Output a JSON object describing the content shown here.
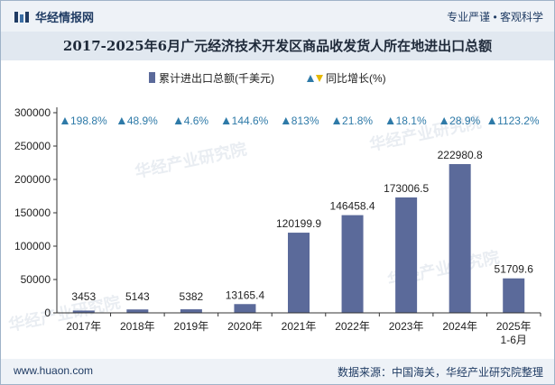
{
  "header": {
    "brand_name": "华经情报网",
    "slogan": "专业严谨 • 客观科学"
  },
  "footer": {
    "website": "www.huaon.com",
    "source": "数据来源：中国海关，华经产业研究院整理"
  },
  "watermark": "华经产业研究院",
  "colors": {
    "bar": "#5b6a9a",
    "growth_marker": "#2e7aa8",
    "title_band": "#e1e8f0",
    "header_band": "#eef2f7",
    "brand_text": "#1f3b63",
    "legend_growth_up": "#2e7aa8",
    "legend_growth_down": "#e6b800"
  },
  "chart_data": {
    "type": "bar",
    "title": "2017-2025年6月广元经济技术开发区商品收发货人所在地进出口总额",
    "categories": [
      "2017年",
      "2018年",
      "2019年",
      "2020年",
      "2021年",
      "2022年",
      "2023年",
      "2024年",
      "2025年\n1-6月"
    ],
    "category_lines": [
      [
        "2017年"
      ],
      [
        "2018年"
      ],
      [
        "2019年"
      ],
      [
        "2020年"
      ],
      [
        "2021年"
      ],
      [
        "2022年"
      ],
      [
        "2023年"
      ],
      [
        "2024年"
      ],
      [
        "2025年",
        "1-6月"
      ]
    ],
    "series": [
      {
        "name": "累计进出口总额(千美元)",
        "values": [
          3453,
          5143,
          5382,
          13165.4,
          120199.9,
          146458.4,
          173006.5,
          222980.8,
          51709.6
        ],
        "labels": [
          "3453",
          "5143",
          "5382",
          "13165.4",
          "120199.9",
          "146458.4",
          "173006.5",
          "222980.8",
          "51709.6"
        ]
      },
      {
        "name": "同比增长(%)",
        "values": [
          198.8,
          48.9,
          4.6,
          144.6,
          813,
          21.8,
          18.1,
          28.9,
          1123.2
        ],
        "labels": [
          "198.8%",
          "48.9%",
          "4.6%",
          "144.6%",
          "813%",
          "21.8%",
          "18.1%",
          "28.9%",
          "1123.2%"
        ]
      }
    ],
    "y_ticks": [
      0,
      50000,
      100000,
      150000,
      200000,
      250000,
      300000
    ],
    "ylim": [
      0,
      300000
    ],
    "xlabel": "",
    "ylabel": "",
    "legend": {
      "position": "top-center",
      "bar_label": "累计进出口总额(千美元)",
      "growth_label": "同比增长(%)"
    }
  }
}
